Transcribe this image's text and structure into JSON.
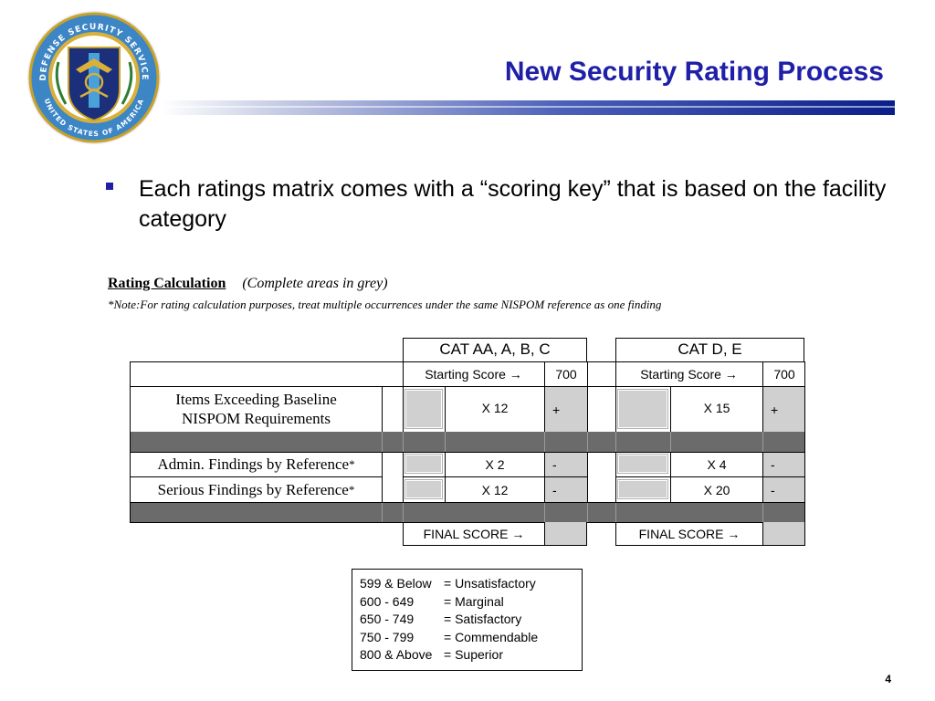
{
  "slide": {
    "title": "New Security Rating Process",
    "bullet": "Each ratings matrix comes with a “scoring key” that is based on the facility category",
    "page_number": "4"
  },
  "seal": {
    "text_top": "DEFENSE SECURITY SERVICE",
    "text_bottom": "UNITED STATES OF AMERICA"
  },
  "calculation": {
    "heading": "Rating Calculation",
    "subheading": "(Complete areas in grey)",
    "note": "*Note:For rating calculation purposes, treat multiple occurrences under the same NISPOM reference as one finding"
  },
  "matrix": {
    "cat1_header": "CAT AA, A, B, C",
    "cat2_header": "CAT D, E",
    "starting_score_label": "Starting Score →",
    "cat1_starting_score": "700",
    "cat2_starting_score": "700",
    "rows": [
      {
        "label": "Items Exceeding Baseline NISPOM Requirements",
        "cat1_mult": "X 12",
        "cat1_op": "+",
        "cat2_mult": "X 15",
        "cat2_op": "+"
      },
      {
        "label": "Admin. Findings by Reference",
        "mark": "*",
        "cat1_mult": "X 2",
        "cat1_op": "-",
        "cat2_mult": "X 4",
        "cat2_op": "-"
      },
      {
        "label": "Serious Findings by Reference",
        "mark": "*",
        "cat1_mult": "X 12",
        "cat1_op": "-",
        "cat2_mult": "X 20",
        "cat2_op": "-"
      }
    ],
    "final_score_label": "FINAL SCORE →"
  },
  "scoring_key": [
    {
      "range": "599 & Below",
      "rating": "= Unsatisfactory"
    },
    {
      "range": "600 - 649",
      "rating": "= Marginal"
    },
    {
      "range": "650 - 749",
      "rating": "= Satisfactory"
    },
    {
      "range": "750 - 799",
      "rating": "= Commendable"
    },
    {
      "range": "800 & Above",
      "rating": "= Superior"
    }
  ]
}
